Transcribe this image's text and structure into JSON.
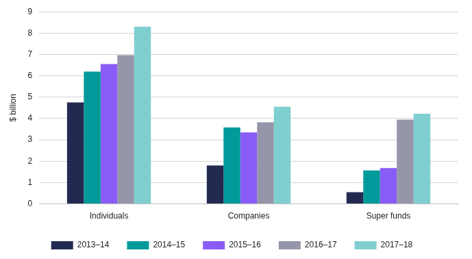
{
  "chart_data": {
    "type": "bar",
    "y_label": "$ billion",
    "categories": [
      "Individuals",
      "Companies",
      "Super funds"
    ],
    "series": [
      {
        "name": "2013–14",
        "color": "#232a52",
        "values": [
          4.75,
          1.8,
          0.55
        ]
      },
      {
        "name": "2014–15",
        "color": "#009a9a",
        "values": [
          6.2,
          3.58,
          1.57
        ]
      },
      {
        "name": "2015–16",
        "color": "#8a5cf6",
        "values": [
          6.55,
          3.35,
          1.68
        ]
      },
      {
        "name": "2016–17",
        "color": "#9596a9",
        "values": [
          6.97,
          3.82,
          3.95
        ]
      },
      {
        "name": "2017–18",
        "color": "#80cfd0",
        "values": [
          8.3,
          4.55,
          4.22
        ]
      }
    ],
    "ylim": [
      0,
      9
    ],
    "yticks": [
      0,
      1,
      2,
      3,
      4,
      5,
      6,
      7,
      8,
      9
    ],
    "grid": true,
    "legend": "bottom"
  }
}
